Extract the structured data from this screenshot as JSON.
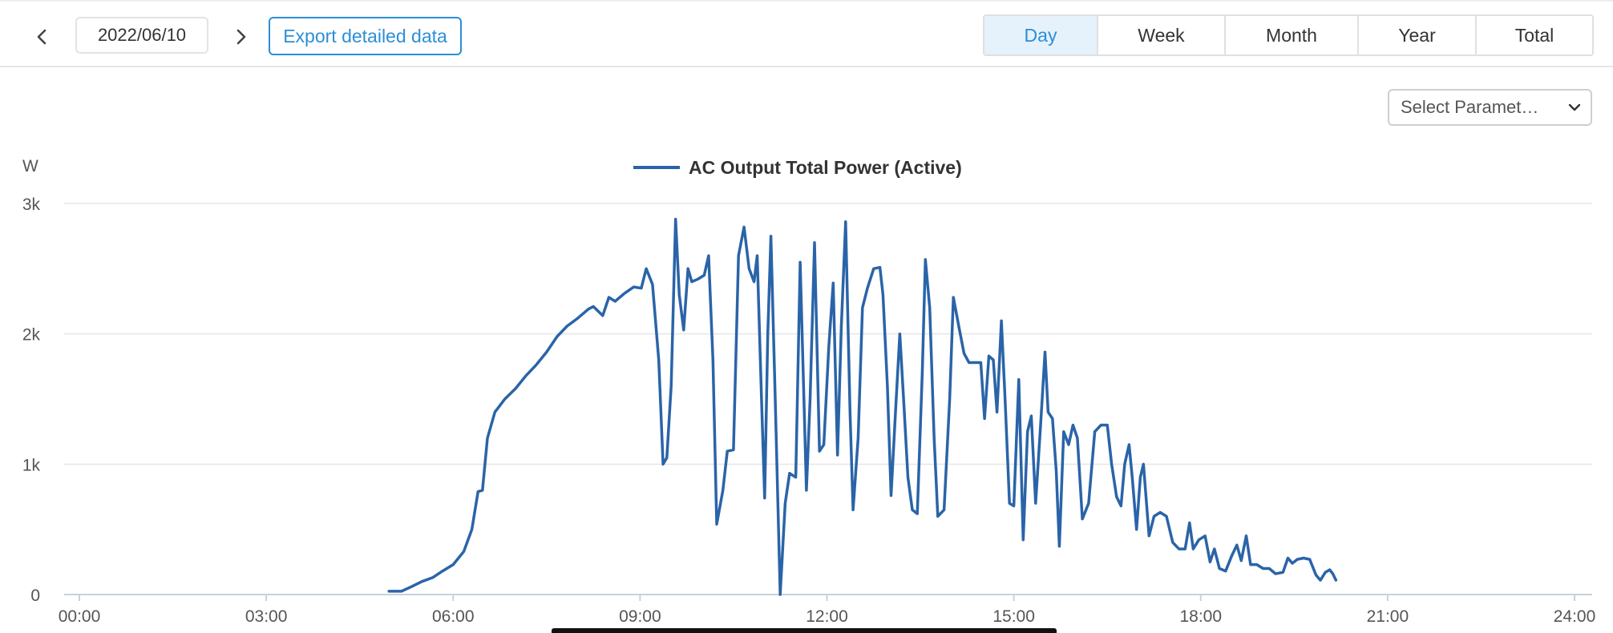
{
  "toolbar": {
    "date": "2022/06/10",
    "export_label": "Export detailed data",
    "prev_icon": "chevron-left-icon",
    "next_icon": "chevron-right-icon",
    "ranges": [
      {
        "label": "Day",
        "active": true
      },
      {
        "label": "Week",
        "active": false
      },
      {
        "label": "Month",
        "active": false
      },
      {
        "label": "Year",
        "active": false
      },
      {
        "label": "Total",
        "active": false
      }
    ]
  },
  "parameter_select": {
    "label": "Select Paramet…",
    "icon": "chevron-down-icon"
  },
  "colors": {
    "accent": "#2b8fd6",
    "series": "#2a64a8",
    "grid": "#e6e6e6"
  },
  "chart_data": {
    "type": "line",
    "ylabel": "W",
    "xlim": [
      0,
      24
    ],
    "ylim": [
      0,
      3000
    ],
    "x_ticks": [
      "00:00",
      "03:00",
      "06:00",
      "09:00",
      "12:00",
      "15:00",
      "18:00",
      "21:00",
      "24:00"
    ],
    "y_ticks": [
      "0",
      "1k",
      "2k",
      "3k"
    ],
    "grid": true,
    "legend_position": "top-center",
    "series": [
      {
        "name": "AC Output Total Power (Active)",
        "points": [
          [
            4.97,
            25
          ],
          [
            5.17,
            25
          ],
          [
            5.33,
            60
          ],
          [
            5.5,
            100
          ],
          [
            5.67,
            130
          ],
          [
            5.83,
            180
          ],
          [
            6.0,
            230
          ],
          [
            6.17,
            330
          ],
          [
            6.3,
            500
          ],
          [
            6.4,
            790
          ],
          [
            6.47,
            800
          ],
          [
            6.55,
            1200
          ],
          [
            6.67,
            1400
          ],
          [
            6.83,
            1500
          ],
          [
            7.0,
            1580
          ],
          [
            7.17,
            1680
          ],
          [
            7.33,
            1760
          ],
          [
            7.5,
            1860
          ],
          [
            7.67,
            1980
          ],
          [
            7.83,
            2060
          ],
          [
            8.0,
            2120
          ],
          [
            8.17,
            2190
          ],
          [
            8.25,
            2210
          ],
          [
            8.4,
            2140
          ],
          [
            8.5,
            2280
          ],
          [
            8.6,
            2250
          ],
          [
            8.75,
            2310
          ],
          [
            8.9,
            2360
          ],
          [
            9.02,
            2350
          ],
          [
            9.1,
            2500
          ],
          [
            9.2,
            2380
          ],
          [
            9.3,
            1800
          ],
          [
            9.37,
            1000
          ],
          [
            9.43,
            1050
          ],
          [
            9.5,
            1600
          ],
          [
            9.57,
            2880
          ],
          [
            9.63,
            2300
          ],
          [
            9.7,
            2030
          ],
          [
            9.77,
            2500
          ],
          [
            9.83,
            2400
          ],
          [
            9.93,
            2420
          ],
          [
            10.03,
            2450
          ],
          [
            10.1,
            2600
          ],
          [
            10.17,
            1800
          ],
          [
            10.23,
            540
          ],
          [
            10.33,
            800
          ],
          [
            10.4,
            1100
          ],
          [
            10.5,
            1110
          ],
          [
            10.58,
            2600
          ],
          [
            10.67,
            2820
          ],
          [
            10.75,
            2500
          ],
          [
            10.83,
            2400
          ],
          [
            10.88,
            2600
          ],
          [
            10.95,
            1500
          ],
          [
            11.0,
            740
          ],
          [
            11.05,
            2000
          ],
          [
            11.1,
            2750
          ],
          [
            11.17,
            1500
          ],
          [
            11.25,
            0
          ],
          [
            11.33,
            700
          ],
          [
            11.4,
            930
          ],
          [
            11.5,
            900
          ],
          [
            11.57,
            2550
          ],
          [
            11.67,
            800
          ],
          [
            11.73,
            1500
          ],
          [
            11.8,
            2700
          ],
          [
            11.88,
            1100
          ],
          [
            11.95,
            1150
          ],
          [
            12.03,
            1900
          ],
          [
            12.1,
            2390
          ],
          [
            12.17,
            1070
          ],
          [
            12.23,
            2050
          ],
          [
            12.3,
            2860
          ],
          [
            12.37,
            1400
          ],
          [
            12.42,
            650
          ],
          [
            12.5,
            1200
          ],
          [
            12.57,
            2200
          ],
          [
            12.65,
            2350
          ],
          [
            12.75,
            2500
          ],
          [
            12.85,
            2510
          ],
          [
            12.9,
            2300
          ],
          [
            12.97,
            1600
          ],
          [
            13.03,
            760
          ],
          [
            13.1,
            1400
          ],
          [
            13.17,
            2000
          ],
          [
            13.23,
            1500
          ],
          [
            13.3,
            900
          ],
          [
            13.37,
            650
          ],
          [
            13.45,
            620
          ],
          [
            13.53,
            1700
          ],
          [
            13.58,
            2570
          ],
          [
            13.65,
            2200
          ],
          [
            13.72,
            1200
          ],
          [
            13.78,
            600
          ],
          [
            13.88,
            650
          ],
          [
            13.97,
            1500
          ],
          [
            14.03,
            2280
          ],
          [
            14.12,
            2050
          ],
          [
            14.2,
            1850
          ],
          [
            14.28,
            1780
          ],
          [
            14.4,
            1780
          ],
          [
            14.47,
            1780
          ],
          [
            14.53,
            1350
          ],
          [
            14.6,
            1830
          ],
          [
            14.67,
            1800
          ],
          [
            14.73,
            1400
          ],
          [
            14.8,
            2100
          ],
          [
            14.86,
            1500
          ],
          [
            14.93,
            700
          ],
          [
            15.0,
            680
          ],
          [
            15.08,
            1650
          ],
          [
            15.15,
            420
          ],
          [
            15.22,
            1250
          ],
          [
            15.28,
            1370
          ],
          [
            15.35,
            700
          ],
          [
            15.43,
            1300
          ],
          [
            15.5,
            1860
          ],
          [
            15.55,
            1400
          ],
          [
            15.62,
            1350
          ],
          [
            15.68,
            950
          ],
          [
            15.73,
            370
          ],
          [
            15.8,
            1250
          ],
          [
            15.88,
            1150
          ],
          [
            15.95,
            1300
          ],
          [
            16.02,
            1200
          ],
          [
            16.1,
            580
          ],
          [
            16.2,
            700
          ],
          [
            16.3,
            1250
          ],
          [
            16.4,
            1300
          ],
          [
            16.5,
            1300
          ],
          [
            16.57,
            1000
          ],
          [
            16.65,
            750
          ],
          [
            16.72,
            680
          ],
          [
            16.78,
            1000
          ],
          [
            16.85,
            1150
          ],
          [
            16.9,
            900
          ],
          [
            16.97,
            500
          ],
          [
            17.03,
            900
          ],
          [
            17.08,
            1000
          ],
          [
            17.17,
            450
          ],
          [
            17.25,
            600
          ],
          [
            17.35,
            630
          ],
          [
            17.45,
            600
          ],
          [
            17.55,
            400
          ],
          [
            17.65,
            350
          ],
          [
            17.75,
            350
          ],
          [
            17.82,
            550
          ],
          [
            17.88,
            350
          ],
          [
            17.97,
            420
          ],
          [
            18.07,
            450
          ],
          [
            18.15,
            250
          ],
          [
            18.22,
            350
          ],
          [
            18.3,
            200
          ],
          [
            18.4,
            180
          ],
          [
            18.5,
            300
          ],
          [
            18.58,
            380
          ],
          [
            18.65,
            260
          ],
          [
            18.73,
            450
          ],
          [
            18.8,
            230
          ],
          [
            18.9,
            230
          ],
          [
            19.0,
            200
          ],
          [
            19.1,
            200
          ],
          [
            19.2,
            160
          ],
          [
            19.32,
            170
          ],
          [
            19.4,
            280
          ],
          [
            19.47,
            240
          ],
          [
            19.55,
            270
          ],
          [
            19.65,
            280
          ],
          [
            19.75,
            270
          ],
          [
            19.85,
            150
          ],
          [
            19.92,
            110
          ],
          [
            20.0,
            170
          ],
          [
            20.07,
            190
          ],
          [
            20.12,
            160
          ],
          [
            20.17,
            110
          ]
        ]
      }
    ]
  }
}
